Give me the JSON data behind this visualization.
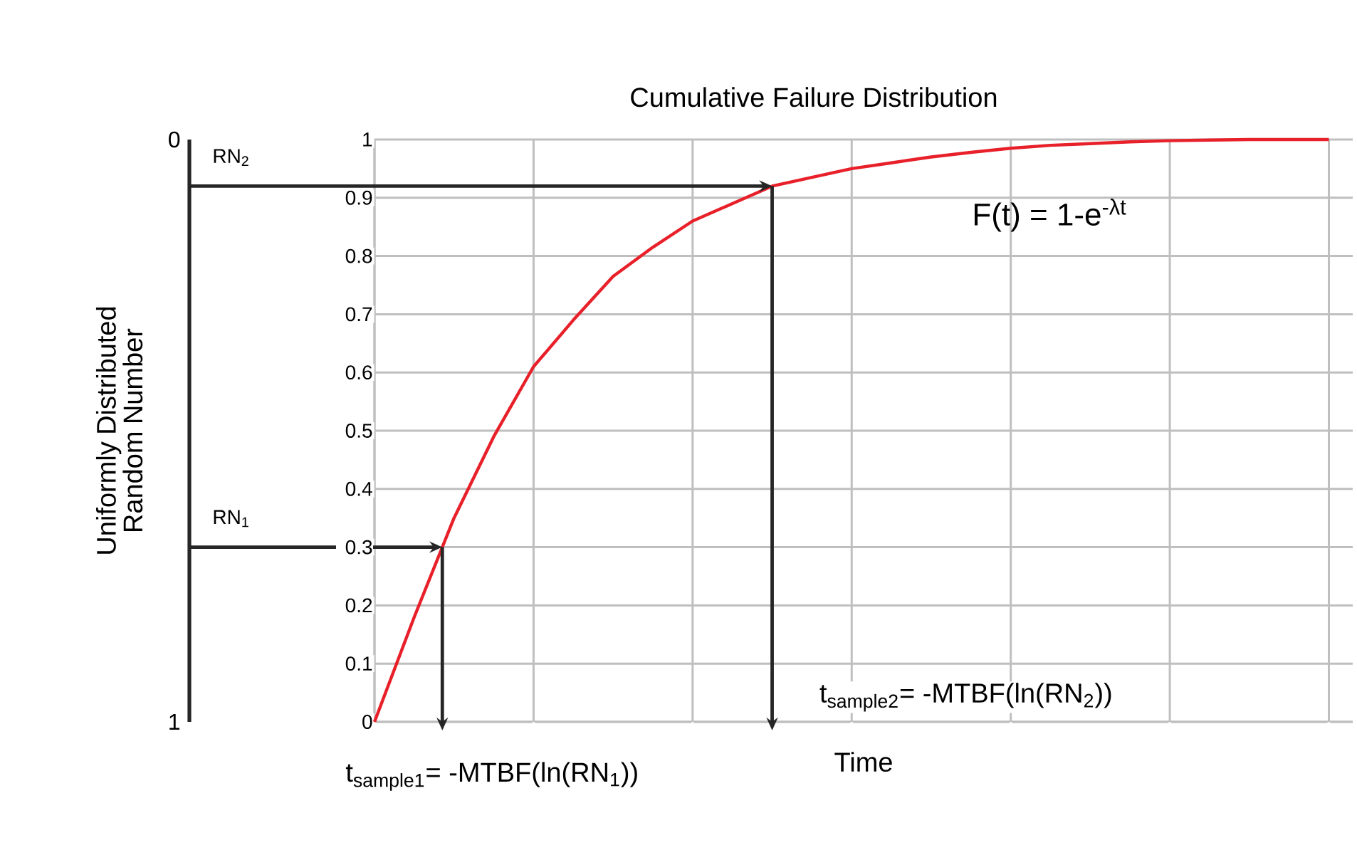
{
  "chart_data": {
    "type": "line",
    "title": "Cumulative Failure Distribution",
    "xlabel": "Time",
    "y2label": "Uniformly Distributed Random Number",
    "categories": [
      null,
      null,
      null,
      null,
      null,
      null,
      null,
      null,
      null,
      null,
      null,
      null,
      null,
      null,
      null,
      null,
      null,
      null,
      null,
      null,
      null,
      null,
      null,
      null,
      null
    ],
    "series": [
      {
        "color": "#e8202a",
        "values": [
          0,
          0.18,
          0.35,
          0.49,
          0.61,
          0.69,
          0.765,
          0.815,
          0.86,
          0.89,
          0.92,
          0.935,
          0.95,
          0.96,
          0.97,
          0.978,
          0.985,
          0.99,
          0.993,
          0.996,
          0.998,
          0.999,
          1,
          1,
          1
        ]
      }
    ],
    "ylim": [
      0,
      1
    ],
    "yticks": [
      0,
      0.1,
      0.2,
      0.3,
      0.4,
      0.5,
      0.6,
      0.7,
      0.8,
      0.9,
      1
    ],
    "y2lim": [
      1,
      0
    ],
    "y2ticks": [
      0,
      1
    ],
    "tick_labels": "y",
    "grid": true,
    "marker": "none",
    "line_style": "solid",
    "ref_lines": [
      {
        "axis": "y",
        "value": 0.92,
        "label": "RN$_{2}$"
      },
      {
        "axis": "y",
        "value": 0.3,
        "label": "RN$_{1}$"
      }
    ],
    "annotations": [
      "F(t) = 1-e$^{-λt}$",
      "t$_{sample1}$= -MTBF(ln(RN$_{1}$))",
      "t$_{sample2}$= -MTBF(ln(RN$_{2}$))"
    ]
  }
}
